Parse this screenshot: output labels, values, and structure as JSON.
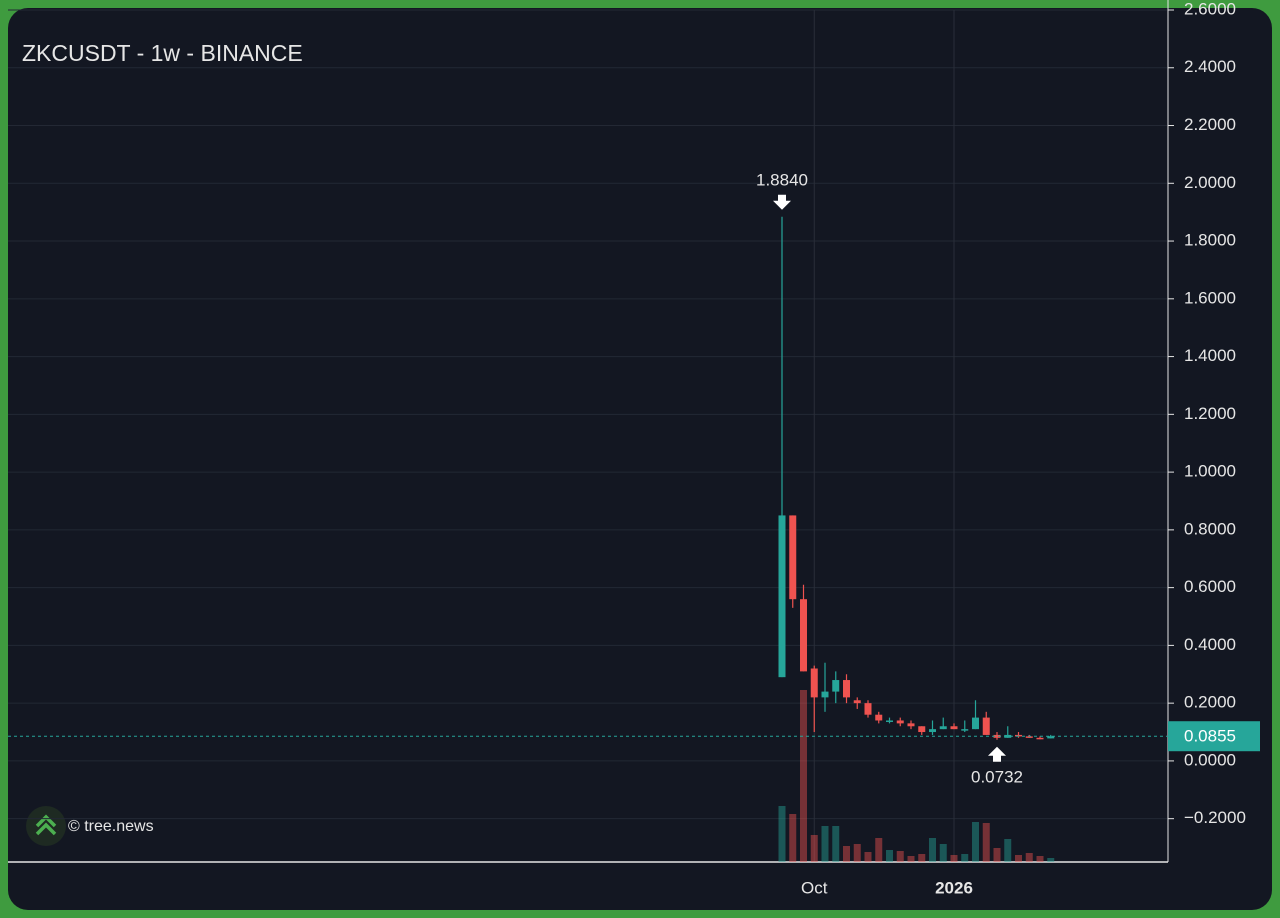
{
  "chart_data": {
    "type": "candlestick",
    "title": "ZKCUSDT - 1w - BINANCE",
    "watermark": "© tree.news",
    "categories": [
      null,
      null,
      null,
      "Oct",
      null,
      null,
      null,
      null,
      null,
      null,
      null,
      null,
      null,
      null,
      null,
      null,
      "2026",
      null,
      null,
      null,
      null,
      null,
      null,
      null,
      null,
      null
    ],
    "open": [
      0.29,
      0.85,
      0.56,
      0.32,
      0.22,
      0.24,
      0.28,
      0.21,
      0.2,
      0.16,
      0.14,
      0.14,
      0.13,
      0.12,
      0.1,
      0.11,
      0.12,
      0.11,
      0.11,
      0.15,
      0.09,
      0.08,
      0.09,
      0.085,
      0.08,
      0.078
    ],
    "high": [
      1.884,
      0.85,
      0.61,
      0.33,
      0.34,
      0.31,
      0.3,
      0.22,
      0.21,
      0.17,
      0.15,
      0.15,
      0.14,
      0.12,
      0.14,
      0.15,
      0.13,
      0.14,
      0.21,
      0.17,
      0.1,
      0.12,
      0.1,
      0.09,
      0.085,
      0.09
    ],
    "low": [
      0.29,
      0.53,
      0.31,
      0.1,
      0.17,
      0.2,
      0.2,
      0.18,
      0.15,
      0.13,
      0.13,
      0.12,
      0.11,
      0.09,
      0.09,
      0.11,
      0.11,
      0.1,
      0.11,
      0.09,
      0.0732,
      0.08,
      0.08,
      0.08,
      0.075,
      0.078
    ],
    "close": [
      0.85,
      0.56,
      0.31,
      0.22,
      0.24,
      0.28,
      0.22,
      0.2,
      0.16,
      0.14,
      0.14,
      0.13,
      0.12,
      0.1,
      0.11,
      0.12,
      0.11,
      0.11,
      0.15,
      0.09,
      0.08,
      0.09,
      0.085,
      0.08,
      0.078,
      0.0855
    ],
    "volume": [
      56,
      48,
      172,
      27,
      36,
      36,
      16,
      18,
      10,
      24,
      12,
      11,
      6,
      8,
      24,
      18,
      7,
      8,
      40,
      39,
      14,
      23,
      7,
      9,
      6,
      4
    ],
    "up_color": "#26a69a",
    "down_color": "#ef5350",
    "ylim": [
      -0.35,
      2.6
    ],
    "yticks": [
      {
        "value": 2.6,
        "label": "2.6000"
      },
      {
        "value": 2.4,
        "label": "2.4000"
      },
      {
        "value": 2.2,
        "label": "2.2000"
      },
      {
        "value": 2.0,
        "label": "2.0000"
      },
      {
        "value": 1.8,
        "label": "1.8000"
      },
      {
        "value": 1.6,
        "label": "1.6000"
      },
      {
        "value": 1.4,
        "label": "1.4000"
      },
      {
        "value": 1.2,
        "label": "1.2000"
      },
      {
        "value": 1.0,
        "label": "1.0000"
      },
      {
        "value": 0.8,
        "label": "0.8000"
      },
      {
        "value": 0.6,
        "label": "0.6000"
      },
      {
        "value": 0.4,
        "label": "0.4000"
      },
      {
        "value": 0.2,
        "label": "0.2000"
      },
      {
        "value": 0,
        "label": "0.0000"
      },
      {
        "value": -0.2,
        "label": "−0.2000"
      }
    ],
    "grid": true,
    "high_label": {
      "value": 1.884,
      "label": "1.8840"
    },
    "low_label": {
      "value": 0.0732,
      "label": "0.0732"
    },
    "last_price": {
      "value": 0.0855,
      "label": "0.0855"
    }
  }
}
